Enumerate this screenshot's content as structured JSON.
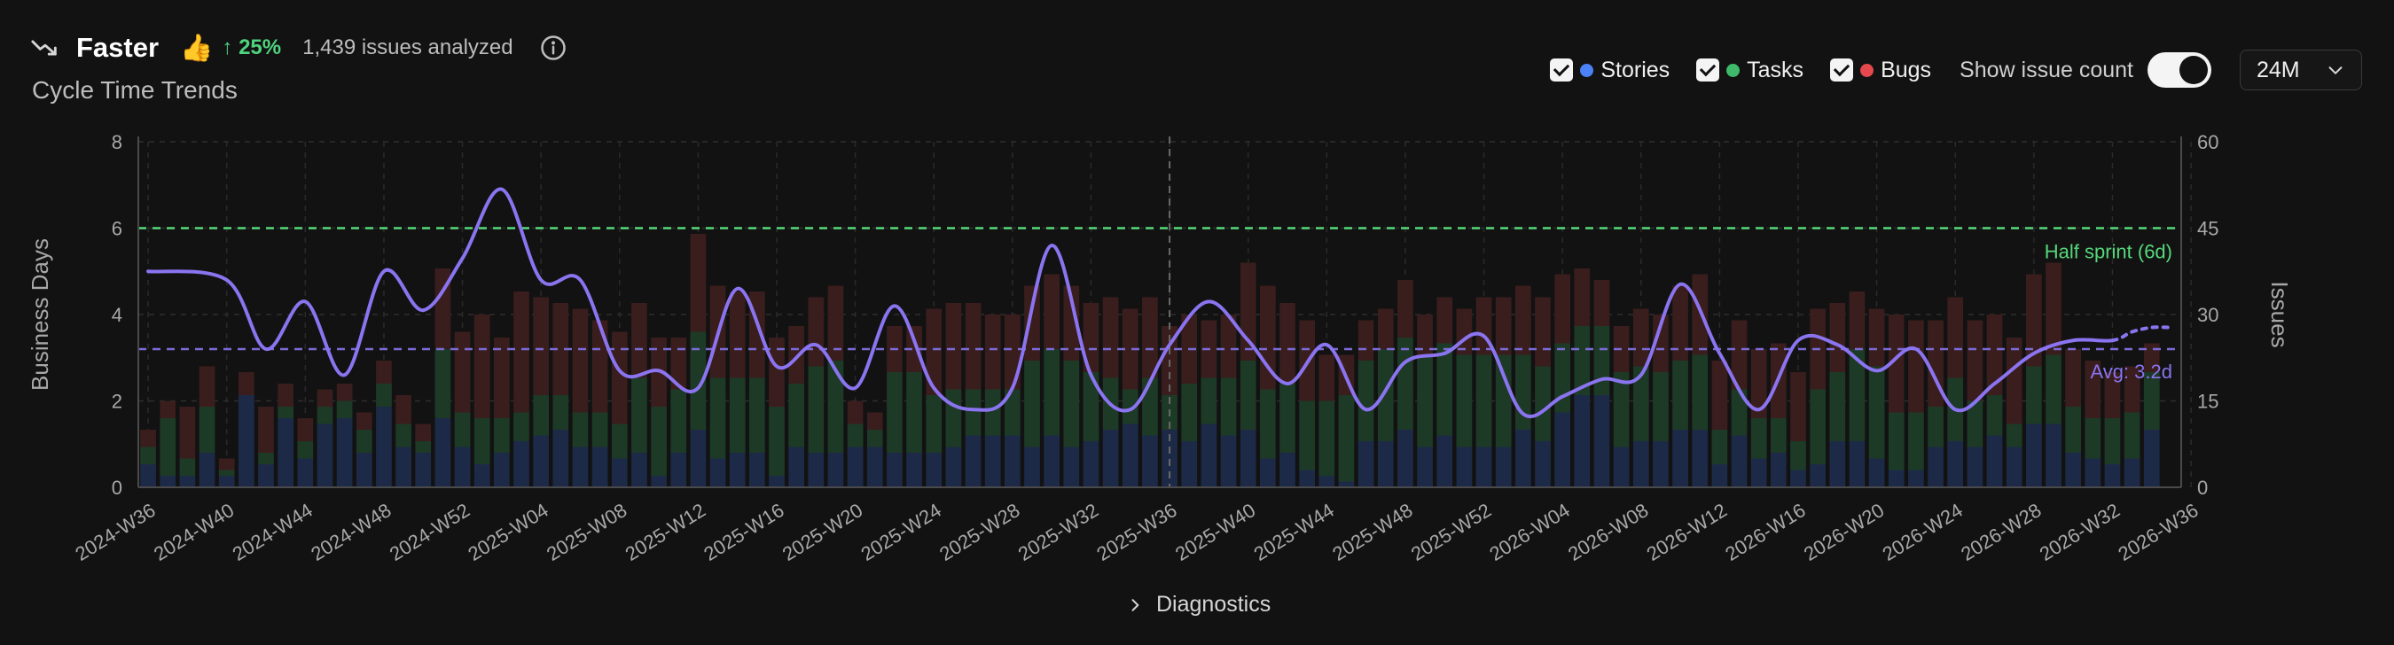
{
  "header": {
    "status": "Faster",
    "thumb_emoji": "👍",
    "change": "↑ 25%",
    "analyzed": "1,439 issues analyzed",
    "subtitle": "Cycle Time Trends",
    "trend_icon": "trend-down-icon",
    "info_icon": "info-icon"
  },
  "controls": {
    "legend": [
      {
        "label": "Stories",
        "color": "#4c82f7",
        "checked": true
      },
      {
        "label": "Tasks",
        "color": "#3fb96a",
        "checked": true
      },
      {
        "label": "Bugs",
        "color": "#e5484d",
        "checked": true
      }
    ],
    "toggle_label": "Show issue count",
    "toggle_on": true,
    "range": "24M"
  },
  "diagnostics_label": "Diagnostics",
  "chart_data": {
    "type": "bar+line",
    "x_ticks": [
      "2024-W36",
      "2024-W40",
      "2024-W44",
      "2024-W48",
      "2024-W52",
      "2025-W04",
      "2025-W08",
      "2025-W12",
      "2025-W16",
      "2025-W20",
      "2025-W24",
      "2025-W28",
      "2025-W32",
      "2025-W36",
      "2025-W40",
      "2025-W44",
      "2025-W48",
      "2025-W52",
      "2026-W04",
      "2026-W08",
      "2026-W12",
      "2026-W16",
      "2026-W20",
      "2026-W24",
      "2026-W28",
      "2026-W32",
      "2026-W36"
    ],
    "ylabel": "Business Days",
    "y2label": "Issues",
    "ylim": [
      0,
      8
    ],
    "y2lim": [
      0,
      60
    ],
    "y_ticks": [
      0,
      2,
      4,
      6,
      8
    ],
    "y2_ticks": [
      0,
      15,
      30,
      45,
      60
    ],
    "colors": {
      "stories": "#4c82f7",
      "tasks": "#3fb96a",
      "bugs": "#e5484d",
      "line": "#8b74f0",
      "half_sprint": "#56d97b",
      "avg": "#7b6bd6"
    },
    "issue_counts": {
      "weeks_from_2024_W36": [
        0,
        1,
        2,
        3,
        4,
        5,
        6,
        7,
        8,
        9,
        10,
        11,
        12,
        13,
        14,
        15,
        16,
        17,
        18,
        19,
        20,
        21,
        22,
        23,
        24,
        25,
        26,
        27,
        28,
        29,
        30,
        31,
        32,
        33,
        34,
        35,
        36,
        37,
        38,
        39,
        40,
        41,
        42,
        43,
        44,
        45,
        46,
        47,
        48,
        49,
        50,
        51,
        52,
        53,
        54,
        55,
        56,
        57,
        58,
        59,
        60,
        61,
        62,
        63,
        64,
        65,
        66,
        67,
        68,
        69,
        70,
        71,
        72,
        73,
        74,
        75,
        76,
        77,
        78,
        79,
        80,
        81,
        82,
        83,
        84,
        85,
        86,
        87,
        88,
        89,
        90,
        91,
        92,
        93,
        94,
        95,
        96,
        97,
        98,
        99,
        100,
        101,
        102
      ],
      "stories": [
        4,
        2,
        2,
        6,
        2,
        16,
        4,
        12,
        5,
        11,
        12,
        6,
        14,
        7,
        6,
        12,
        7,
        4,
        6,
        8,
        9,
        10,
        7,
        7,
        5,
        6,
        2,
        6,
        10,
        5,
        6,
        6,
        2,
        7,
        6,
        6,
        7,
        7,
        6,
        6,
        6,
        7,
        9,
        9,
        9,
        7,
        9,
        7,
        8,
        10,
        11,
        9,
        10,
        8,
        11,
        9,
        10,
        5,
        6,
        3,
        2,
        1,
        8,
        8,
        10,
        7,
        9,
        7,
        7,
        7,
        10,
        8,
        13,
        16,
        16,
        7,
        8,
        8,
        10,
        10,
        4,
        9,
        5,
        6,
        3,
        4,
        8,
        8,
        5,
        3,
        3,
        7,
        8,
        7,
        9,
        7,
        11,
        11,
        6,
        5,
        4,
        5,
        10
      ],
      "tasks": [
        3,
        10,
        3,
        8,
        1,
        0,
        2,
        2,
        3,
        3,
        3,
        4,
        4,
        4,
        2,
        12,
        6,
        8,
        6,
        5,
        7,
        6,
        6,
        6,
        6,
        13,
        12,
        11,
        17,
        14,
        13,
        13,
        12,
        11,
        15,
        16,
        4,
        3,
        14,
        14,
        10,
        10,
        8,
        8,
        8,
        15,
        15,
        15,
        12,
        9,
        6,
        10,
        6,
        10,
        8,
        10,
        12,
        12,
        12,
        12,
        13,
        15,
        14,
        16,
        16,
        16,
        16,
        16,
        16,
        16,
        13,
        13,
        12,
        12,
        12,
        13,
        13,
        12,
        12,
        13,
        6,
        8,
        7,
        6,
        5,
        13,
        12,
        16,
        16,
        10,
        10,
        7,
        11,
        8,
        7,
        4,
        10,
        12,
        8,
        7,
        8,
        8,
        10
      ],
      "bugs": [
        3,
        3,
        9,
        7,
        2,
        4,
        8,
        4,
        4,
        3,
        3,
        3,
        4,
        5,
        3,
        14,
        14,
        18,
        14,
        21,
        17,
        16,
        18,
        16,
        16,
        13,
        12,
        9,
        17,
        16,
        15,
        15,
        12,
        10,
        12,
        13,
        4,
        3,
        8,
        8,
        15,
        15,
        15,
        13,
        13,
        13,
        13,
        13,
        12,
        14,
        14,
        14,
        12,
        12,
        10,
        11,
        17,
        18,
        14,
        14,
        8,
        7,
        7,
        7,
        10,
        7,
        8,
        8,
        10,
        10,
        12,
        12,
        12,
        10,
        8,
        8,
        10,
        10,
        13,
        14,
        12,
        12,
        12,
        13,
        12,
        14,
        12,
        10,
        10,
        17,
        16,
        15,
        14,
        14,
        14,
        15,
        16,
        16,
        10,
        10,
        8,
        8,
        5
      ]
    },
    "cycle_time": {
      "weeks_from_2024_W36": [
        0,
        4,
        6,
        8,
        10,
        12,
        14,
        16,
        18,
        20,
        22,
        24,
        26,
        28,
        30,
        32,
        34,
        36,
        38,
        40,
        42,
        44,
        46,
        48,
        50,
        52,
        54,
        56,
        58,
        60,
        62,
        64,
        66,
        68,
        70,
        72,
        74,
        76,
        78,
        80,
        82,
        84,
        86,
        88,
        90,
        92,
        94,
        96,
        98,
        100,
        101,
        102,
        103
      ],
      "values": [
        5.0,
        4.8,
        3.2,
        4.3,
        2.6,
        5.0,
        4.1,
        5.3,
        6.9,
        4.8,
        4.8,
        2.7,
        2.7,
        2.3,
        4.6,
        2.8,
        3.3,
        2.3,
        4.2,
        2.3,
        1.8,
        2.3,
        5.6,
        2.6,
        1.8,
        3.3,
        4.3,
        3.4,
        2.4,
        3.3,
        1.8,
        2.9,
        3.1,
        3.5,
        1.7,
        2.1,
        2.5,
        2.6,
        4.7,
        3.1,
        1.8,
        3.4,
        3.3,
        2.7,
        3.2,
        1.8,
        2.4,
        3.1,
        3.4,
        3.4,
        3.6,
        3.7,
        3.7
      ],
      "projected_from_week": 100
    },
    "annotations": [
      {
        "label": "Half sprint (6d)",
        "y": 6,
        "style": "dashed"
      },
      {
        "label": "Avg: 3.2d",
        "y": 3.2,
        "style": "dashed"
      }
    ],
    "current_week_marker": "2025-W36",
    "grid": true
  }
}
